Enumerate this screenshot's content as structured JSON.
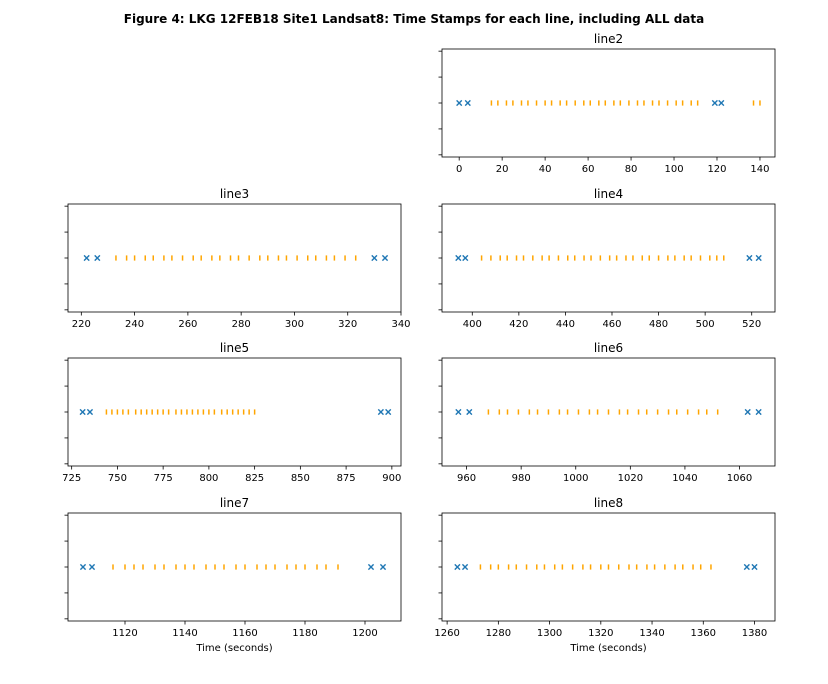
{
  "title": "Figure 4: LKG 12FEB18 Site1 Landsat8: Time Stamps for each line, including ALL data",
  "colors": {
    "included": "#ffa500",
    "excluded": "#1f77b4",
    "axis": "#000000"
  },
  "chart_data": [
    {
      "type": "scatter",
      "title": "line2",
      "xlabel": "",
      "xlim": [
        -8,
        147
      ],
      "xticks": [
        0,
        20,
        40,
        60,
        80,
        100,
        120,
        140
      ],
      "series": [
        {
          "marker": "x",
          "color": "#1f77b4",
          "x": [
            0,
            4,
            119,
            122
          ]
        },
        {
          "marker": "|",
          "color": "#ffa500",
          "x": [
            15,
            18,
            22,
            25,
            29,
            32,
            36,
            40,
            43,
            47,
            50,
            54,
            58,
            61,
            65,
            68,
            72,
            75,
            79,
            83,
            86,
            90,
            93,
            97,
            101,
            104,
            108,
            111,
            137,
            140
          ]
        }
      ]
    },
    {
      "type": "scatter",
      "title": "line3",
      "xlabel": "",
      "xlim": [
        215,
        340
      ],
      "xticks": [
        220,
        240,
        260,
        280,
        300,
        320,
        340
      ],
      "series": [
        {
          "marker": "x",
          "color": "#1f77b4",
          "x": [
            222,
            226,
            330,
            334
          ]
        },
        {
          "marker": "|",
          "color": "#ffa500",
          "x": [
            233,
            237,
            240,
            244,
            247,
            251,
            254,
            258,
            262,
            265,
            269,
            272,
            276,
            279,
            283,
            287,
            290,
            294,
            297,
            301,
            305,
            308,
            312,
            315,
            319,
            323
          ]
        }
      ]
    },
    {
      "type": "scatter",
      "title": "line4",
      "xlabel": "",
      "xlim": [
        387,
        530
      ],
      "xticks": [
        400,
        420,
        440,
        460,
        480,
        500,
        520
      ],
      "series": [
        {
          "marker": "x",
          "color": "#1f77b4",
          "x": [
            394,
            397,
            519,
            523
          ]
        },
        {
          "marker": "|",
          "color": "#ffa500",
          "x": [
            404,
            408,
            412,
            415,
            419,
            422,
            426,
            430,
            433,
            437,
            441,
            444,
            448,
            451,
            455,
            459,
            462,
            466,
            469,
            473,
            476,
            480,
            484,
            487,
            491,
            494,
            498,
            502,
            505,
            508
          ]
        }
      ]
    },
    {
      "type": "scatter",
      "title": "line5",
      "xlabel": "",
      "xlim": [
        723,
        905
      ],
      "xticks": [
        725,
        750,
        775,
        800,
        825,
        850,
        875,
        900
      ],
      "series": [
        {
          "marker": "x",
          "color": "#1f77b4",
          "x": [
            731,
            735,
            894,
            898
          ]
        },
        {
          "marker": "|",
          "color": "#ffa500",
          "x": [
            744,
            747,
            750,
            753,
            756,
            760,
            763,
            766,
            769,
            772,
            775,
            778,
            782,
            785,
            788,
            791,
            794,
            797,
            800,
            803,
            807,
            810,
            813,
            816,
            819,
            822,
            825
          ]
        }
      ]
    },
    {
      "type": "scatter",
      "title": "line6",
      "xlabel": "",
      "xlim": [
        951,
        1073
      ],
      "xticks": [
        960,
        980,
        1000,
        1020,
        1040,
        1060
      ],
      "series": [
        {
          "marker": "x",
          "color": "#1f77b4",
          "x": [
            957,
            961,
            1063,
            1067
          ]
        },
        {
          "marker": "|",
          "color": "#ffa500",
          "x": [
            968,
            972,
            975,
            979,
            983,
            986,
            990,
            994,
            997,
            1001,
            1005,
            1008,
            1012,
            1016,
            1019,
            1023,
            1026,
            1030,
            1034,
            1037,
            1041,
            1045,
            1048,
            1052
          ]
        }
      ]
    },
    {
      "type": "scatter",
      "title": "line7",
      "xlabel": "Time (seconds)",
      "xlim": [
        1101,
        1212
      ],
      "xticks": [
        1120,
        1140,
        1160,
        1180,
        1200
      ],
      "series": [
        {
          "marker": "x",
          "color": "#1f77b4",
          "x": [
            1106,
            1109,
            1202,
            1206
          ]
        },
        {
          "marker": "|",
          "color": "#ffa500",
          "x": [
            1116,
            1120,
            1123,
            1126,
            1130,
            1133,
            1137,
            1140,
            1143,
            1147,
            1150,
            1153,
            1157,
            1160,
            1164,
            1167,
            1170,
            1174,
            1177,
            1180,
            1184,
            1187,
            1191
          ]
        }
      ]
    },
    {
      "type": "scatter",
      "title": "line8",
      "xlabel": "Time (seconds)",
      "xlim": [
        1258,
        1388
      ],
      "xticks": [
        1260,
        1280,
        1300,
        1320,
        1340,
        1360,
        1380
      ],
      "series": [
        {
          "marker": "x",
          "color": "#1f77b4",
          "x": [
            1264,
            1267,
            1377,
            1380
          ]
        },
        {
          "marker": "|",
          "color": "#ffa500",
          "x": [
            1273,
            1277,
            1280,
            1284,
            1287,
            1291,
            1295,
            1298,
            1302,
            1305,
            1309,
            1313,
            1316,
            1320,
            1323,
            1327,
            1331,
            1334,
            1338,
            1341,
            1345,
            1349,
            1352,
            1356,
            1359,
            1363
          ]
        }
      ]
    }
  ]
}
